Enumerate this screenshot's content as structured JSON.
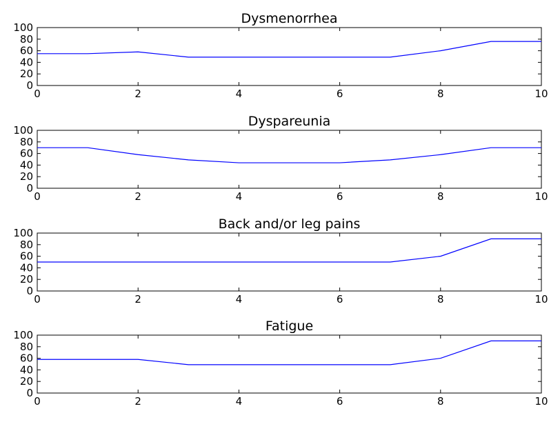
{
  "chart_data": [
    {
      "type": "line",
      "title": "Dysmenorrhea",
      "xlabel": "",
      "ylabel": "",
      "xlim": [
        0,
        10
      ],
      "ylim": [
        0,
        100
      ],
      "xticks": [
        0,
        2,
        4,
        6,
        8,
        10
      ],
      "yticks": [
        0,
        20,
        40,
        60,
        80,
        100
      ],
      "x": [
        0,
        1,
        2,
        3,
        4,
        5,
        6,
        7,
        8,
        9,
        10
      ],
      "series": [
        {
          "values": [
            55,
            55,
            58,
            49,
            49,
            49,
            49,
            49,
            60,
            76,
            76
          ]
        }
      ],
      "color": "#0000ff"
    },
    {
      "type": "line",
      "title": "Dyspareunia",
      "xlabel": "",
      "ylabel": "",
      "xlim": [
        0,
        10
      ],
      "ylim": [
        0,
        100
      ],
      "xticks": [
        0,
        2,
        4,
        6,
        8,
        10
      ],
      "yticks": [
        0,
        20,
        40,
        60,
        80,
        100
      ],
      "x": [
        0,
        1,
        2,
        3,
        4,
        5,
        6,
        7,
        8,
        9,
        10
      ],
      "series": [
        {
          "values": [
            70,
            70,
            58,
            49,
            44,
            44,
            44,
            49,
            58,
            70,
            70
          ]
        }
      ],
      "color": "#0000ff"
    },
    {
      "type": "line",
      "title": "Back and/or leg pains",
      "xlabel": "",
      "ylabel": "",
      "xlim": [
        0,
        10
      ],
      "ylim": [
        0,
        100
      ],
      "xticks": [
        0,
        2,
        4,
        6,
        8,
        10
      ],
      "yticks": [
        0,
        20,
        40,
        60,
        80,
        100
      ],
      "x": [
        0,
        1,
        2,
        3,
        4,
        5,
        6,
        7,
        8,
        9,
        10
      ],
      "series": [
        {
          "values": [
            50,
            50,
            50,
            50,
            50,
            50,
            50,
            50,
            60,
            90,
            90
          ]
        }
      ],
      "color": "#0000ff"
    },
    {
      "type": "line",
      "title": "Fatigue",
      "xlabel": "",
      "ylabel": "",
      "xlim": [
        0,
        10
      ],
      "ylim": [
        0,
        100
      ],
      "xticks": [
        0,
        2,
        4,
        6,
        8,
        10
      ],
      "yticks": [
        0,
        20,
        40,
        60,
        80,
        100
      ],
      "x": [
        0,
        1,
        2,
        3,
        4,
        5,
        6,
        7,
        8,
        9,
        10
      ],
      "series": [
        {
          "values": [
            58,
            58,
            58,
            49,
            49,
            49,
            49,
            49,
            60,
            90,
            90
          ]
        }
      ],
      "color": "#0000ff"
    }
  ]
}
